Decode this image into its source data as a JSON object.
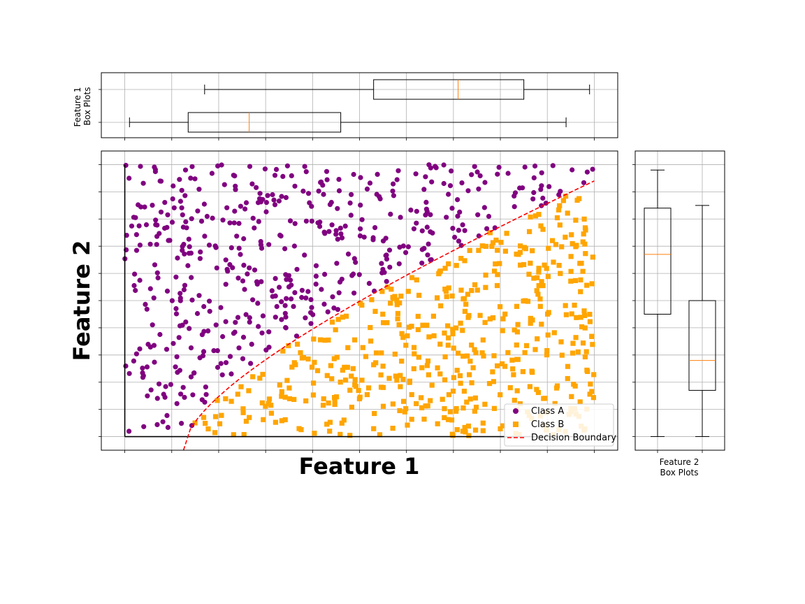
{
  "chart_data": [
    {
      "panel": "main-scatter",
      "type": "scatter",
      "xlabel": "Feature 1",
      "ylabel": "Feature 2",
      "xlim": [
        -0.05,
        1.05
      ],
      "ylim": [
        -0.05,
        1.05
      ],
      "grid": true,
      "legend_location": "lower right",
      "series": [
        {
          "name": "Class A",
          "marker": "circle",
          "color": "#800080",
          "count": 500
        },
        {
          "name": "Class B",
          "marker": "square",
          "color": "#ffa500",
          "count": 500
        },
        {
          "name": "Decision Boundary",
          "type": "line",
          "style": "dashed",
          "color": "#ff0000",
          "x": [
            0.125,
            1.0
          ],
          "y": [
            -0.05,
            0.94
          ]
        }
      ]
    },
    {
      "panel": "top-boxplot",
      "type": "box",
      "orientation": "horizontal",
      "ylabel": "Feature 1\nBox Plots",
      "boxes": [
        {
          "min": 0.01,
          "q1": 0.135,
          "median": 0.265,
          "q3": 0.46,
          "max": 0.94
        },
        {
          "min": 0.17,
          "q1": 0.53,
          "median": 0.71,
          "q3": 0.85,
          "max": 0.99
        }
      ]
    },
    {
      "panel": "right-boxplot",
      "type": "box",
      "orientation": "vertical",
      "xlabel": "Feature 2\nBox Plots",
      "boxes": [
        {
          "min": 0.0,
          "q1": 0.45,
          "median": 0.67,
          "q3": 0.84,
          "max": 0.98
        },
        {
          "min": 0.0,
          "q1": 0.17,
          "median": 0.28,
          "q3": 0.5,
          "max": 0.85
        }
      ]
    }
  ],
  "legend": {
    "class_a": "Class A",
    "class_b": "Class B",
    "boundary": "Decision Boundary"
  },
  "labels": {
    "xlabel": "Feature 1",
    "ylabel": "Feature 2",
    "top_ylabel_line1": "Feature 1",
    "top_ylabel_line2": "Box Plots",
    "right_xlabel_line1": "Feature 2",
    "right_xlabel_line2": "Box Plots"
  }
}
